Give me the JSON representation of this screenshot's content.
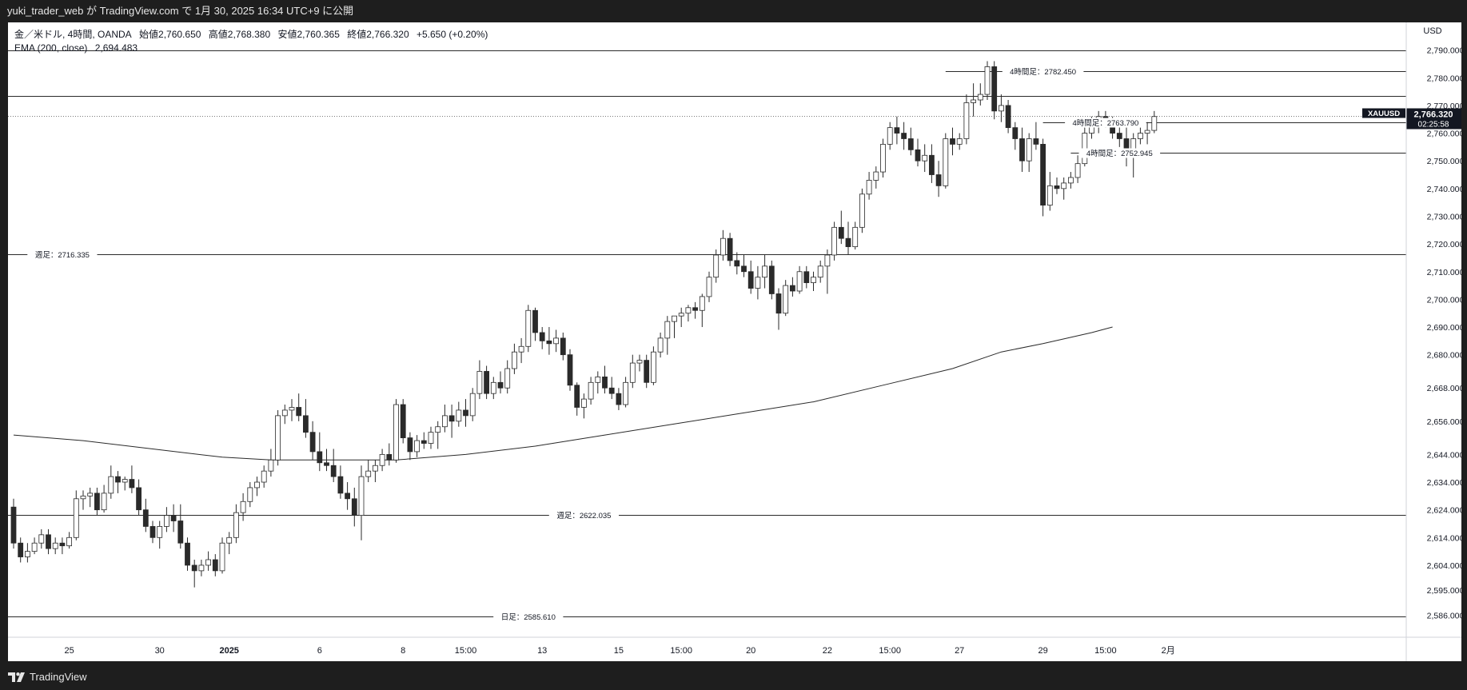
{
  "header": {
    "publish_line": "yuki_trader_web が TradingView.com で 1月 30, 2025 16:34 UTC+9 に公開"
  },
  "legend": {
    "symbol_line": "金／米ドル, 4時間, OANDA",
    "open": "始値2,760.650",
    "high": "高値2,768.380",
    "low": "安値2,760.365",
    "close": "終値2,766.320",
    "change": "+5.650 (+0.20%)",
    "ema_label": "EMA (200, close)",
    "ema_value": "2,694.483"
  },
  "footer": {
    "brand": "TradingView"
  },
  "colors": {
    "background": "#ffffff",
    "frame": "#1e1e1e",
    "candle_up_fill": "#ffffff",
    "candle_down_fill": "#2a2a2a",
    "candle_border": "#2a2a2a",
    "level_line": "#2a2a2a",
    "ema_line": "#2a2a2a",
    "price_tag_bg": "#131722",
    "price_tag_text": "#ffffff"
  },
  "chart_data": {
    "type": "candlestick",
    "symbol": "XAUUSD",
    "currency": "USD",
    "ylim": [
      2578,
      2800
    ],
    "y_ticks": [
      {
        "value": 2586,
        "label": "2,586.000"
      },
      {
        "value": 2595,
        "label": "2,595.000"
      },
      {
        "value": 2604,
        "label": "2,604.000"
      },
      {
        "value": 2614,
        "label": "2,614.000"
      },
      {
        "value": 2624,
        "label": "2,624.000"
      },
      {
        "value": 2634,
        "label": "2,634.000"
      },
      {
        "value": 2644,
        "label": "2,644.000"
      },
      {
        "value": 2656,
        "label": "2,656.000"
      },
      {
        "value": 2668,
        "label": "2,668.000"
      },
      {
        "value": 2680,
        "label": "2,680.000"
      },
      {
        "value": 2690,
        "label": "2,690.000"
      },
      {
        "value": 2700,
        "label": "2,700.000"
      },
      {
        "value": 2710,
        "label": "2,710.000"
      },
      {
        "value": 2720,
        "label": "2,720.000"
      },
      {
        "value": 2730,
        "label": "2,730.000"
      },
      {
        "value": 2740,
        "label": "2,740.000"
      },
      {
        "value": 2750,
        "label": "2,750.000"
      },
      {
        "value": 2760,
        "label": "2,760.000"
      },
      {
        "value": 2770,
        "label": "2,770.000"
      },
      {
        "value": 2780,
        "label": "2,780.000"
      },
      {
        "value": 2790,
        "label": "2,790.000"
      }
    ],
    "x_ticks": [
      {
        "bar": 8,
        "label": "25",
        "bold": false
      },
      {
        "bar": 21,
        "label": "30",
        "bold": false
      },
      {
        "bar": 31,
        "label": "2025",
        "bold": true
      },
      {
        "bar": 44,
        "label": "6",
        "bold": false
      },
      {
        "bar": 56,
        "label": "8",
        "bold": false
      },
      {
        "bar": 65,
        "label": "15:00",
        "bold": false
      },
      {
        "bar": 76,
        "label": "13",
        "bold": false
      },
      {
        "bar": 87,
        "label": "15",
        "bold": false
      },
      {
        "bar": 96,
        "label": "15:00",
        "bold": false
      },
      {
        "bar": 106,
        "label": "20",
        "bold": false
      },
      {
        "bar": 117,
        "label": "22",
        "bold": false
      },
      {
        "bar": 126,
        "label": "15:00",
        "bold": false
      },
      {
        "bar": 136,
        "label": "27",
        "bold": false
      },
      {
        "bar": 148,
        "label": "29",
        "bold": false
      },
      {
        "bar": 157,
        "label": "15:00",
        "bold": false
      },
      {
        "bar": 166,
        "label": "2月",
        "bold": false
      }
    ],
    "levels": [
      {
        "value": 2790.0,
        "label": "",
        "label_bar": null
      },
      {
        "value": 2782.45,
        "label": "4時間足：2782.450",
        "label_bar": 148,
        "start_bar": 134
      },
      {
        "value": 2773.5,
        "label": "",
        "label_bar": null
      },
      {
        "value": 2763.79,
        "label": "4時間足：2763.790",
        "label_bar": 157,
        "start_bar": 148
      },
      {
        "value": 2752.945,
        "label": "4時間足：2752.945",
        "label_bar": 159,
        "start_bar": 152
      },
      {
        "value": 2716.335,
        "label": "週足：2716.335",
        "label_bar": 7
      },
      {
        "value": 2622.035,
        "label": "週足：2622.035",
        "label_bar": 82
      },
      {
        "value": 2585.61,
        "label": "日足：2585.610",
        "label_bar": 74
      }
    ],
    "current_price": {
      "value": 2766.32,
      "label": "2,766.320",
      "symbol": "XAUUSD",
      "countdown": "02:25:58"
    },
    "ema": {
      "name": "EMA (200, close)",
      "values": [
        [
          0,
          2651
        ],
        [
          10,
          2649
        ],
        [
          20,
          2646
        ],
        [
          30,
          2643
        ],
        [
          37,
          2642
        ],
        [
          45,
          2642
        ],
        [
          55,
          2642
        ],
        [
          65,
          2644
        ],
        [
          75,
          2647
        ],
        [
          85,
          2651
        ],
        [
          95,
          2655
        ],
        [
          105,
          2659
        ],
        [
          115,
          2663
        ],
        [
          125,
          2669
        ],
        [
          135,
          2675
        ],
        [
          142,
          2681
        ],
        [
          148,
          2684
        ],
        [
          155,
          2688
        ],
        [
          158,
          2690
        ]
      ]
    },
    "candles": [
      [
        2625,
        2628,
        2610,
        2612
      ],
      [
        2612,
        2614,
        2605,
        2607
      ],
      [
        2607,
        2612,
        2605,
        2609
      ],
      [
        2609,
        2614,
        2608,
        2612
      ],
      [
        2612,
        2617,
        2610,
        2615
      ],
      [
        2615,
        2617,
        2608,
        2610
      ],
      [
        2610,
        2614,
        2608,
        2612
      ],
      [
        2612,
        2614,
        2608,
        2611
      ],
      [
        2611,
        2616,
        2610,
        2614
      ],
      [
        2614,
        2631,
        2613,
        2628
      ],
      [
        2628,
        2631,
        2624,
        2629
      ],
      [
        2629,
        2632,
        2625,
        2630
      ],
      [
        2630,
        2632,
        2622,
        2624
      ],
      [
        2624,
        2633,
        2623,
        2630
      ],
      [
        2630,
        2640,
        2628,
        2636
      ],
      [
        2636,
        2638,
        2630,
        2634
      ],
      [
        2634,
        2636,
        2631,
        2635
      ],
      [
        2635,
        2640,
        2630,
        2632
      ],
      [
        2632,
        2635,
        2622,
        2624
      ],
      [
        2624,
        2628,
        2616,
        2618
      ],
      [
        2618,
        2620,
        2612,
        2614
      ],
      [
        2614,
        2620,
        2610,
        2618
      ],
      [
        2618,
        2625,
        2616,
        2622
      ],
      [
        2622,
        2626,
        2616,
        2620
      ],
      [
        2620,
        2626,
        2610,
        2612
      ],
      [
        2612,
        2614,
        2602,
        2604
      ],
      [
        2604,
        2606,
        2596,
        2602
      ],
      [
        2602,
        2606,
        2600,
        2604
      ],
      [
        2604,
        2609,
        2602,
        2606
      ],
      [
        2606,
        2608,
        2600,
        2602
      ],
      [
        2602,
        2614,
        2601,
        2612
      ],
      [
        2612,
        2616,
        2608,
        2614
      ],
      [
        2614,
        2626,
        2612,
        2623
      ],
      [
        2623,
        2630,
        2620,
        2627
      ],
      [
        2627,
        2634,
        2625,
        2632
      ],
      [
        2632,
        2636,
        2629,
        2634
      ],
      [
        2634,
        2640,
        2632,
        2638
      ],
      [
        2638,
        2646,
        2636,
        2642
      ],
      [
        2642,
        2660,
        2640,
        2658
      ],
      [
        2658,
        2662,
        2655,
        2660
      ],
      [
        2660,
        2664,
        2656,
        2661
      ],
      [
        2661,
        2666,
        2656,
        2658
      ],
      [
        2658,
        2664,
        2650,
        2652
      ],
      [
        2652,
        2656,
        2642,
        2645
      ],
      [
        2645,
        2652,
        2638,
        2641
      ],
      [
        2641,
        2646,
        2638,
        2640
      ],
      [
        2640,
        2646,
        2634,
        2636
      ],
      [
        2636,
        2640,
        2628,
        2630
      ],
      [
        2630,
        2634,
        2624,
        2628
      ],
      [
        2628,
        2632,
        2618,
        2622
      ],
      [
        2622,
        2640,
        2613,
        2636
      ],
      [
        2636,
        2642,
        2634,
        2638
      ],
      [
        2638,
        2642,
        2634,
        2640
      ],
      [
        2640,
        2646,
        2638,
        2644
      ],
      [
        2644,
        2648,
        2640,
        2642
      ],
      [
        2642,
        2664,
        2641,
        2662
      ],
      [
        2662,
        2664,
        2648,
        2650
      ],
      [
        2650,
        2652,
        2642,
        2645
      ],
      [
        2645,
        2651,
        2643,
        2649
      ],
      [
        2649,
        2652,
        2646,
        2648
      ],
      [
        2648,
        2654,
        2646,
        2652
      ],
      [
        2652,
        2656,
        2646,
        2654
      ],
      [
        2654,
        2662,
        2652,
        2658
      ],
      [
        2658,
        2662,
        2650,
        2656
      ],
      [
        2656,
        2663,
        2654,
        2660
      ],
      [
        2660,
        2664,
        2654,
        2658
      ],
      [
        2658,
        2668,
        2656,
        2666
      ],
      [
        2666,
        2678,
        2664,
        2674
      ],
      [
        2674,
        2676,
        2664,
        2666
      ],
      [
        2666,
        2672,
        2664,
        2670
      ],
      [
        2670,
        2674,
        2666,
        2668
      ],
      [
        2668,
        2678,
        2666,
        2675
      ],
      [
        2675,
        2684,
        2673,
        2681
      ],
      [
        2681,
        2686,
        2677,
        2683
      ],
      [
        2683,
        2698,
        2681,
        2696
      ],
      [
        2696,
        2697,
        2685,
        2688
      ],
      [
        2688,
        2690,
        2682,
        2685
      ],
      [
        2685,
        2690,
        2680,
        2684
      ],
      [
        2684,
        2689,
        2681,
        2686
      ],
      [
        2686,
        2688,
        2678,
        2680
      ],
      [
        2680,
        2682,
        2667,
        2669
      ],
      [
        2669,
        2670,
        2658,
        2661
      ],
      [
        2661,
        2666,
        2657,
        2664
      ],
      [
        2664,
        2672,
        2662,
        2670
      ],
      [
        2670,
        2674,
        2666,
        2672
      ],
      [
        2672,
        2676,
        2666,
        2668
      ],
      [
        2668,
        2672,
        2664,
        2666
      ],
      [
        2666,
        2668,
        2660,
        2662
      ],
      [
        2662,
        2672,
        2661,
        2670
      ],
      [
        2670,
        2680,
        2668,
        2677
      ],
      [
        2677,
        2680,
        2674,
        2678
      ],
      [
        2678,
        2680,
        2668,
        2670
      ],
      [
        2670,
        2683,
        2669,
        2681
      ],
      [
        2681,
        2688,
        2679,
        2686
      ],
      [
        2686,
        2694,
        2680,
        2692
      ],
      [
        2692,
        2694,
        2686,
        2694
      ],
      [
        2694,
        2697,
        2690,
        2695
      ],
      [
        2695,
        2698,
        2692,
        2697
      ],
      [
        2697,
        2699,
        2693,
        2696
      ],
      [
        2696,
        2702,
        2690,
        2701
      ],
      [
        2701,
        2710,
        2699,
        2708
      ],
      [
        2708,
        2718,
        2706,
        2716
      ],
      [
        2716,
        2725,
        2714,
        2722
      ],
      [
        2722,
        2724,
        2712,
        2714
      ],
      [
        2714,
        2717,
        2709,
        2712
      ],
      [
        2712,
        2716,
        2708,
        2710
      ],
      [
        2710,
        2714,
        2702,
        2704
      ],
      [
        2704,
        2712,
        2700,
        2708
      ],
      [
        2708,
        2716,
        2704,
        2712
      ],
      [
        2712,
        2714,
        2700,
        2702
      ],
      [
        2702,
        2704,
        2689,
        2695
      ],
      [
        2695,
        2707,
        2694,
        2705
      ],
      [
        2705,
        2708,
        2701,
        2703
      ],
      [
        2703,
        2712,
        2702,
        2710
      ],
      [
        2710,
        2712,
        2704,
        2706
      ],
      [
        2706,
        2710,
        2703,
        2708
      ],
      [
        2708,
        2714,
        2706,
        2712
      ],
      [
        2712,
        2718,
        2702,
        2716
      ],
      [
        2716,
        2728,
        2714,
        2726
      ],
      [
        2726,
        2732,
        2720,
        2722
      ],
      [
        2722,
        2728,
        2716,
        2719
      ],
      [
        2719,
        2728,
        2718,
        2726
      ],
      [
        2726,
        2740,
        2724,
        2738
      ],
      [
        2738,
        2746,
        2736,
        2743
      ],
      [
        2743,
        2748,
        2740,
        2746
      ],
      [
        2746,
        2758,
        2744,
        2756
      ],
      [
        2756,
        2764,
        2754,
        2762
      ],
      [
        2762,
        2766,
        2756,
        2760
      ],
      [
        2760,
        2764,
        2754,
        2758
      ],
      [
        2758,
        2762,
        2752,
        2754
      ],
      [
        2754,
        2758,
        2748,
        2750
      ],
      [
        2750,
        2756,
        2746,
        2752
      ],
      [
        2752,
        2756,
        2742,
        2745
      ],
      [
        2745,
        2750,
        2737,
        2741
      ],
      [
        2741,
        2760,
        2740,
        2758
      ],
      [
        2758,
        2762,
        2752,
        2756
      ],
      [
        2756,
        2760,
        2754,
        2758
      ],
      [
        2758,
        2774,
        2756,
        2771
      ],
      [
        2771,
        2778,
        2766,
        2772
      ],
      [
        2772,
        2778,
        2770,
        2774
      ],
      [
        2774,
        2786,
        2772,
        2784
      ],
      [
        2784,
        2786,
        2765,
        2768
      ],
      [
        2768,
        2774,
        2764,
        2770
      ],
      [
        2770,
        2772,
        2760,
        2762
      ],
      [
        2762,
        2764,
        2754,
        2758
      ],
      [
        2758,
        2762,
        2746,
        2750
      ],
      [
        2750,
        2760,
        2746,
        2758
      ],
      [
        2758,
        2764,
        2754,
        2756
      ],
      [
        2756,
        2758,
        2730,
        2734
      ],
      [
        2734,
        2746,
        2732,
        2741
      ],
      [
        2741,
        2744,
        2738,
        2740
      ],
      [
        2740,
        2744,
        2736,
        2742
      ],
      [
        2742,
        2746,
        2740,
        2744
      ],
      [
        2744,
        2752,
        2742,
        2749
      ],
      [
        2749,
        2762,
        2748,
        2760
      ],
      [
        2760,
        2766,
        2758,
        2764
      ],
      [
        2764,
        2768,
        2760,
        2766
      ],
      [
        2766,
        2768,
        2762,
        2764
      ],
      [
        2764,
        2766,
        2758,
        2760
      ],
      [
        2760,
        2764,
        2755,
        2758
      ],
      [
        2758,
        2762,
        2748,
        2752
      ],
      [
        2752,
        2760,
        2744,
        2758
      ],
      [
        2758,
        2762,
        2756,
        2760
      ],
      [
        2760,
        2764,
        2756,
        2761
      ],
      [
        2761,
        2768,
        2760,
        2766
      ]
    ]
  }
}
